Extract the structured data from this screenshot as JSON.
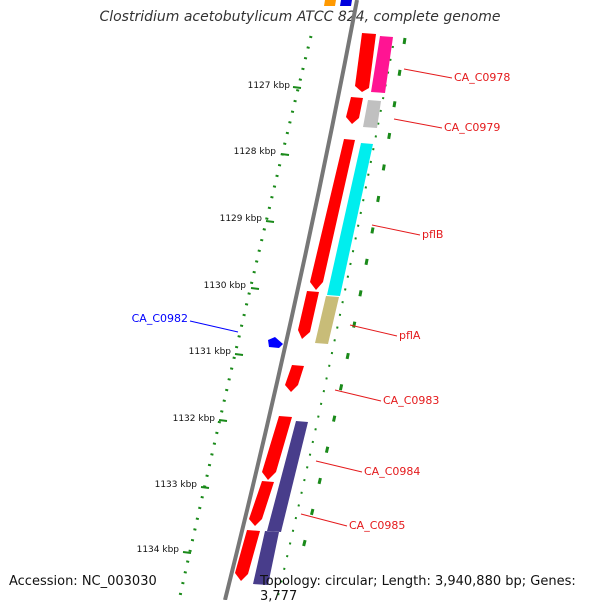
{
  "title": "Clostridium acetobutylicum ATCC 824, complete genome",
  "footer": {
    "accession": "Accession: NC_003030",
    "summary": "Topology: circular; Length: 3,940,880 bp; Genes: 3,777"
  },
  "ticks": [
    "1127 kbp",
    "1128 kbp",
    "1129 kbp",
    "1130 kbp",
    "1131 kbp",
    "1132 kbp",
    "1133 kbp",
    "1134 kbp"
  ],
  "genes": [
    {
      "label": "CA_C0978",
      "color": "#e41a1c"
    },
    {
      "label": "CA_C0979",
      "color": "#e41a1c"
    },
    {
      "label": "pflB",
      "color": "#e41a1c"
    },
    {
      "label": "pflA",
      "color": "#e41a1c"
    },
    {
      "label": "CA_C0982",
      "color": "#0000ff"
    },
    {
      "label": "CA_C0983",
      "color": "#e41a1c"
    },
    {
      "label": "CA_C0984",
      "color": "#e41a1c"
    },
    {
      "label": "CA_C0985",
      "color": "#e41a1c"
    }
  ],
  "colors": {
    "cds": "#ff0000",
    "backbone": "#777777",
    "dots": "#1a8a1a",
    "cog_magenta": "#ff1493",
    "cog_gray": "#c0c0c0",
    "cog_cyan": "#00eeee",
    "cog_khaki": "#c8bc78",
    "cog_purple": "#483d8b",
    "cog_orange": "#ff9900",
    "cog_blue": "#0000dd"
  }
}
